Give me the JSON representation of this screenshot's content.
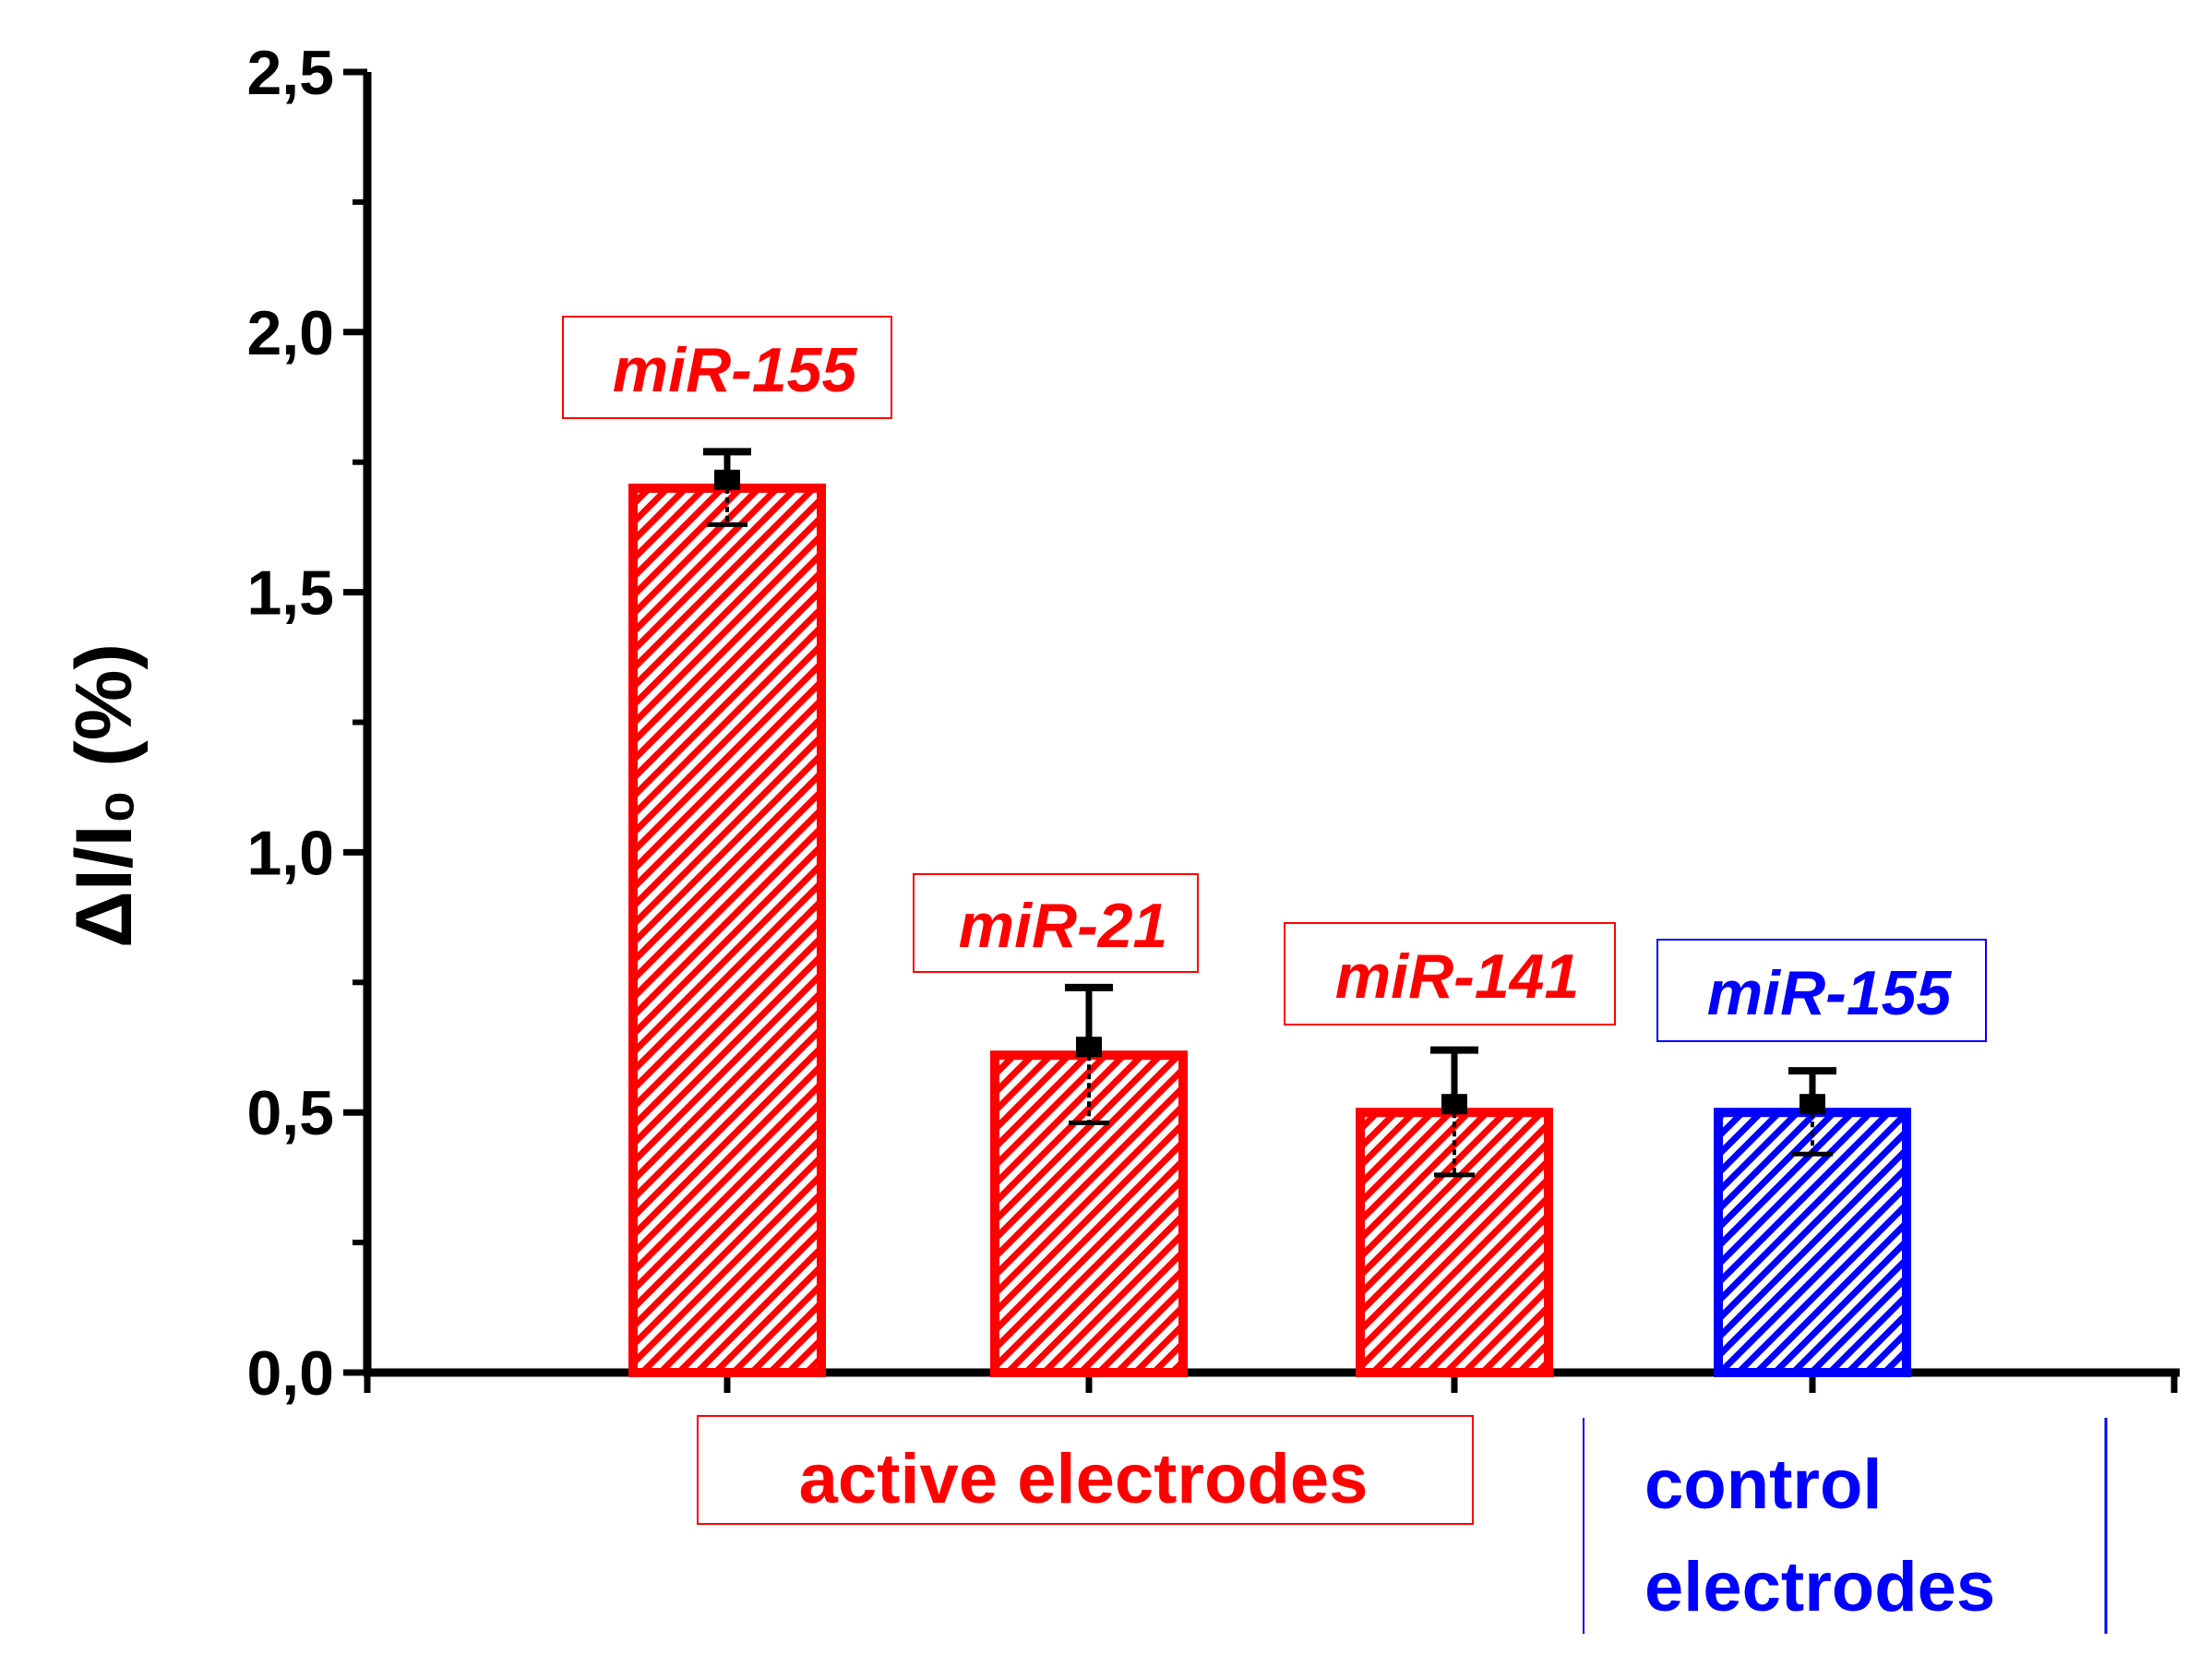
{
  "chart_data": {
    "type": "bar",
    "title": "",
    "xlabel": "",
    "ylabel": "ΔI/I₀ (%)",
    "ylim": [
      0,
      2.5
    ],
    "yticks": [
      {
        "value": 0.0,
        "label": "0,0"
      },
      {
        "value": 0.5,
        "label": "0,5"
      },
      {
        "value": 1.0,
        "label": "1,0"
      },
      {
        "value": 1.5,
        "label": "1,5"
      },
      {
        "value": 2.0,
        "label": "2,0"
      },
      {
        "value": 2.5,
        "label": "2,5"
      }
    ],
    "yminor_step": 0.25,
    "grid": false,
    "categories": [
      "miR-155",
      "miR-21",
      "miR-141",
      "miR-155"
    ],
    "values": [
      1.7,
      0.61,
      0.5,
      0.5
    ],
    "errors": [
      0.07,
      0.13,
      0.12,
      0.08
    ],
    "groups": [
      "active",
      "active",
      "active",
      "control"
    ],
    "group_labels": {
      "active": [
        "active electrodes"
      ],
      "control": [
        "control",
        "electrodes"
      ]
    },
    "colors": {
      "active": "#ff0000",
      "control": "#0000ff",
      "axis": "#000000"
    }
  }
}
